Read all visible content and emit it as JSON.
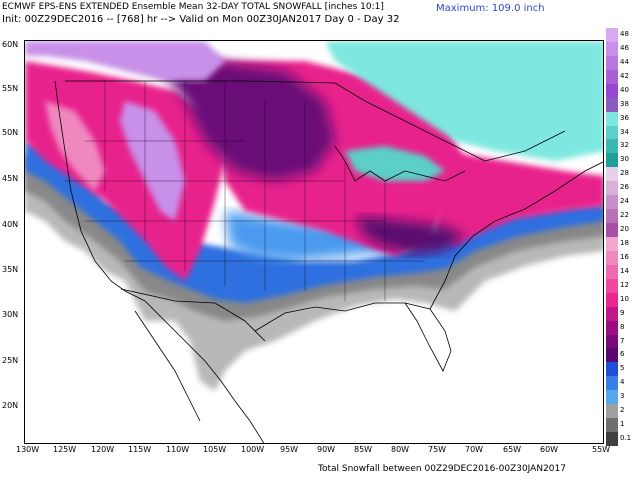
{
  "header": {
    "title_line1": "ECMWF EPS-ENS EXTENDED Ensemble Mean 32-DAY TOTAL SNOWFALL [inches 10:1]",
    "title_line2": "Init: 00Z29DEC2016 -- [768] hr --> Valid on Mon 00Z30JAN2017   Day 0 - Day 32",
    "maximum": "Maximum: 109.0 inch"
  },
  "footer": "Total Snowfall between 00Z29DEC2016-00Z30JAN2017",
  "map": {
    "lat_labels": [
      "60N",
      "55N",
      "50N",
      "45N",
      "40N",
      "35N",
      "30N",
      "25N",
      "20N"
    ],
    "lon_labels": [
      "130W",
      "125W",
      "120W",
      "115W",
      "110W",
      "105W",
      "100W",
      "95W",
      "90W",
      "85W",
      "80W",
      "75W",
      "70W",
      "65W",
      "60W",
      "55W"
    ]
  },
  "colorbar": {
    "labels": [
      "48",
      "46",
      "44",
      "42",
      "40",
      "38",
      "36",
      "34",
      "32",
      "30",
      "28",
      "26",
      "24",
      "22",
      "20",
      "18",
      "16",
      "14",
      "12",
      "10",
      "9",
      "8",
      "7",
      "6",
      "5",
      "4",
      "3",
      "2",
      "1",
      "0.1"
    ],
    "colors": [
      "#d8a8f0",
      "#c890e8",
      "#b878e0",
      "#a860d8",
      "#9848d0",
      "#8a5cc0",
      "#7ee8e0",
      "#5ccfc8",
      "#3ab8b0",
      "#1ea098",
      "#e8d0e8",
      "#d8b0d8",
      "#c890c8",
      "#b870b8",
      "#a850a8",
      "#f0a8d0",
      "#f088c0",
      "#f068b0",
      "#f048a0",
      "#e82890",
      "#c01888",
      "#9a1080",
      "#7a0878",
      "#580870",
      "#2050d8",
      "#3880e8",
      "#58a8f0",
      "#a0a0a0",
      "#707070",
      "#404040"
    ]
  }
}
